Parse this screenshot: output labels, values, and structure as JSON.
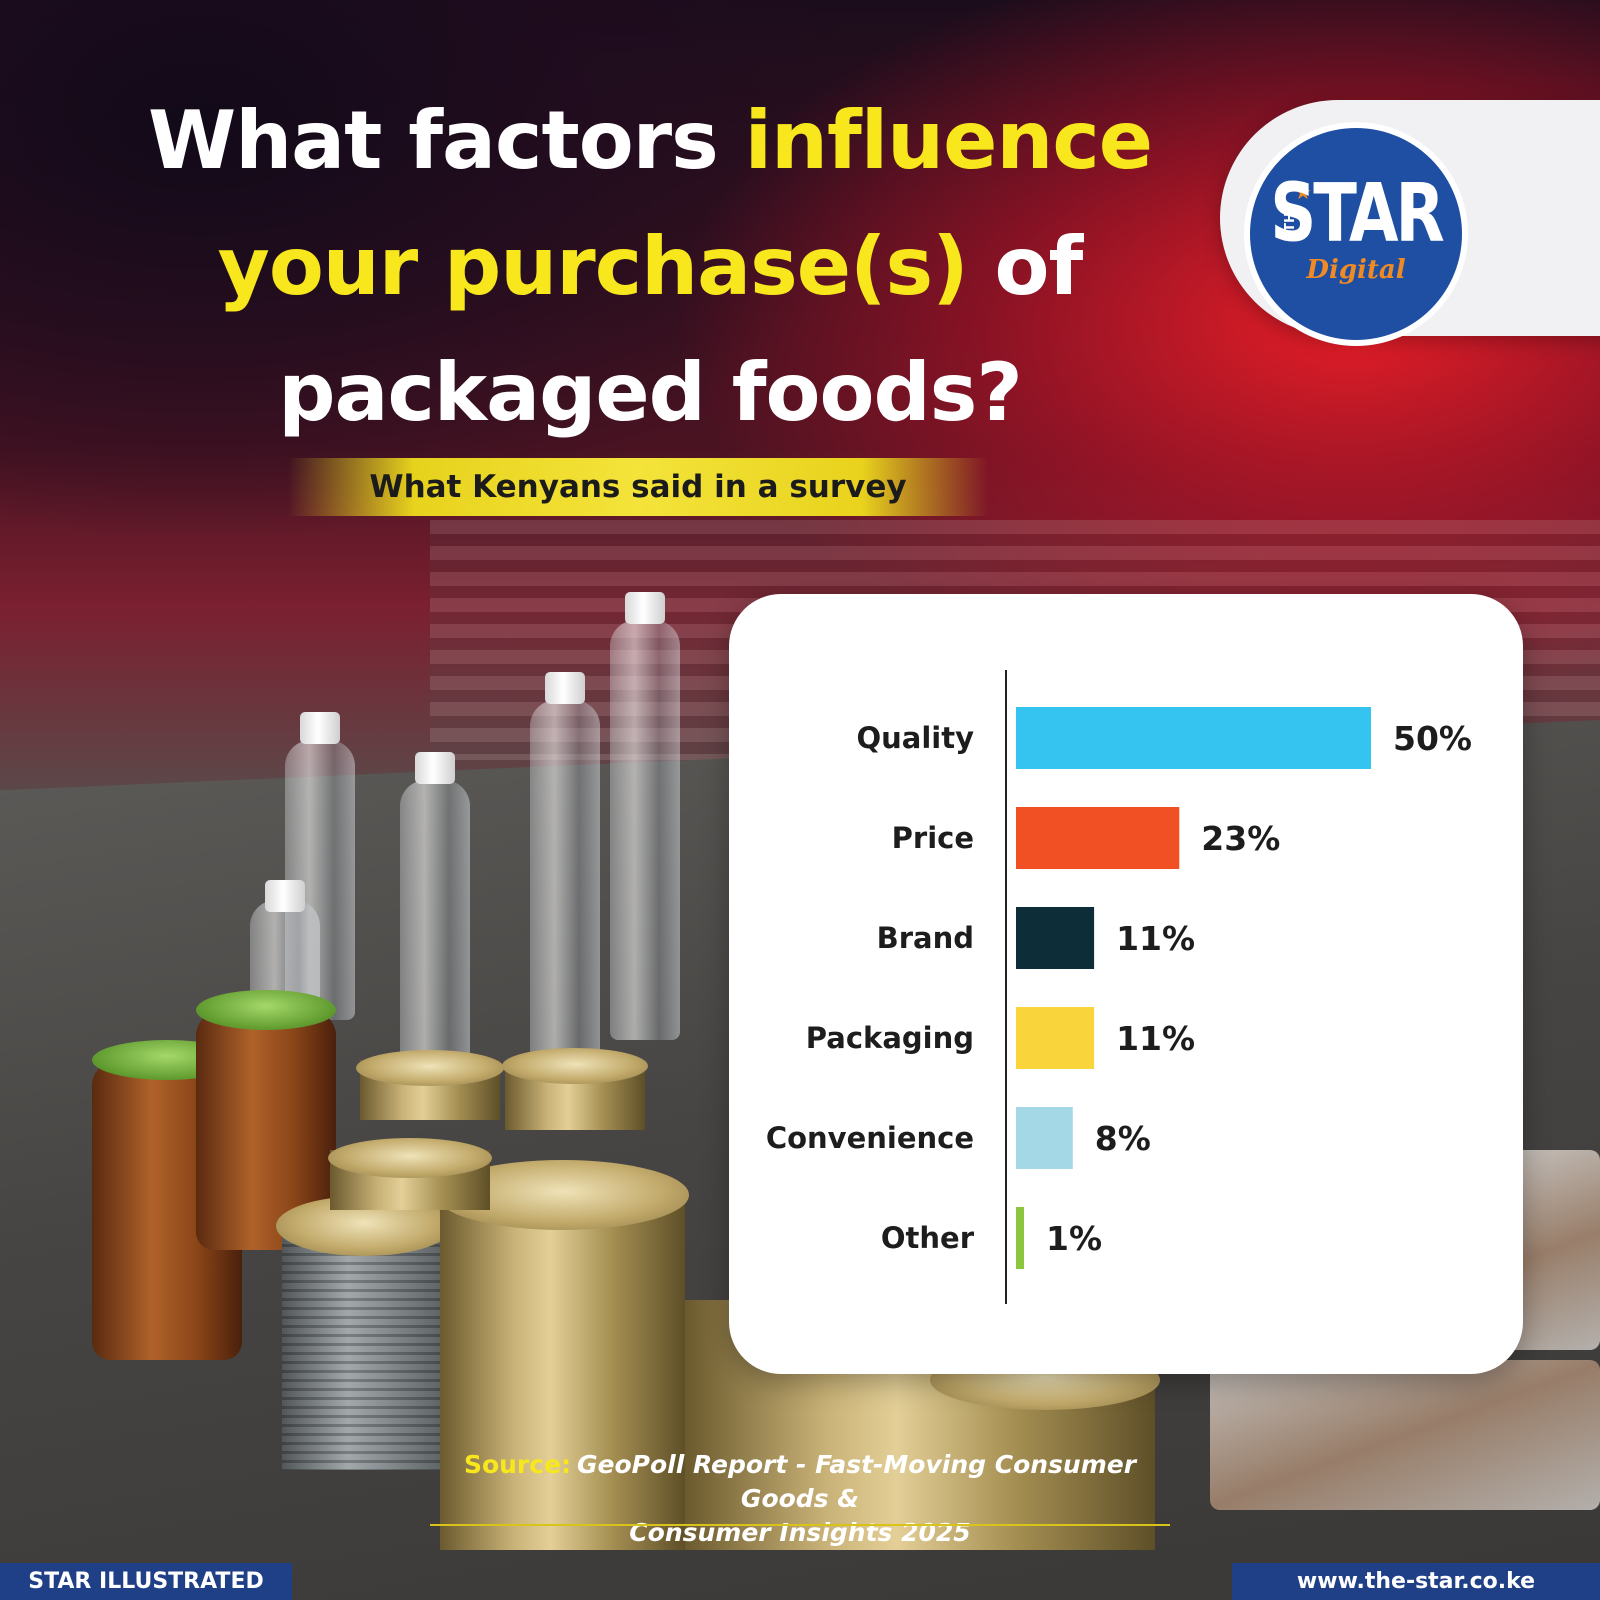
{
  "title": {
    "part1": "What factors ",
    "part2": "influence",
    "part3": "your purchase(s)",
    "part4": " of",
    "part5": "packaged foods?"
  },
  "subtitle": "What Kenyans said in a survey",
  "logo": {
    "the": "THE",
    "word": "STAR",
    "tag": "Digital"
  },
  "chart_data": {
    "type": "bar",
    "orientation": "horizontal",
    "categories": [
      "Quality",
      "Price",
      "Brand",
      "Packaging",
      "Convenience",
      "Other"
    ],
    "values": [
      50,
      23,
      11,
      11,
      8,
      1
    ],
    "value_labels": [
      "50%",
      "23%",
      "11%",
      "11%",
      "8%",
      "1%"
    ],
    "colors": [
      "#35c3f0",
      "#f05023",
      "#0d2e38",
      "#f9d43a",
      "#a4d8e6",
      "#8cc63f"
    ],
    "xlim": [
      0,
      50
    ]
  },
  "source": {
    "label": "Source:",
    "line1": "GeoPoll Report - Fast-Moving Consumer Goods &",
    "line2": "Consumer Insights 2025"
  },
  "footer": {
    "left": "STAR ILLUSTRATED",
    "right": "www.the-star.co.ke"
  },
  "colors": {
    "accent_yellow": "#f7e71c",
    "brand_blue": "#1f4fa3",
    "footer_blue": "#1f3f86",
    "logo_orange": "#f08a24"
  }
}
